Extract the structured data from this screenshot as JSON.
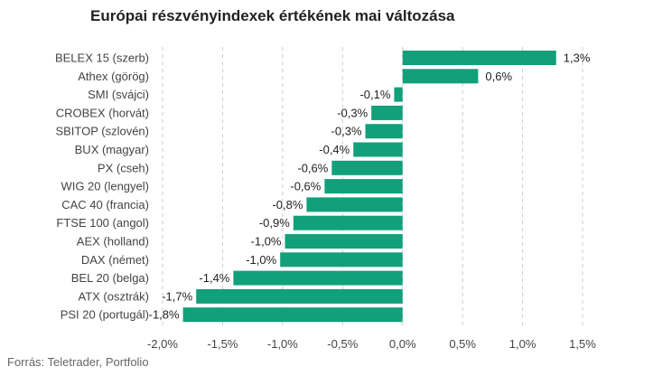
{
  "chart_data": {
    "type": "bar",
    "orientation": "horizontal",
    "title": "Európai részvényindexek értékének mai változása",
    "source": "Forrás: Teletrader, Portfolio",
    "categories": [
      "BELEX 15 (szerb)",
      "Athex (görög)",
      "SMI (svájci)",
      "CROBEX (horvát)",
      "SBITOP (szlovén)",
      "BUX (magyar)",
      "PX (cseh)",
      "WIG 20 (lengyel)",
      "CAC 40 (francia)",
      "FTSE 100 (angol)",
      "AEX (holland)",
      "DAX (német)",
      "BEL 20 (belga)",
      "ATX (osztrák)",
      "PSI 20 (portugál)"
    ],
    "values": [
      1.28,
      0.63,
      -0.07,
      -0.26,
      -0.31,
      -0.41,
      -0.59,
      -0.65,
      -0.8,
      -0.91,
      -0.98,
      -1.02,
      -1.41,
      -1.72,
      -1.83
    ],
    "value_labels": [
      "1,3%",
      "0,6%",
      "-0,1%",
      "-0,3%",
      "-0,3%",
      "-0,4%",
      "-0,6%",
      "-0,6%",
      "-0,8%",
      "-0,9%",
      "-1,0%",
      "-1,0%",
      "-1,4%",
      "-1,7%",
      "-1,8%"
    ],
    "x_ticks": [
      -2.0,
      -1.5,
      -1.0,
      -0.5,
      0.0,
      0.5,
      1.0,
      1.5
    ],
    "x_tick_labels": [
      "-2,0%",
      "-1,5%",
      "-1,0%",
      "-0,5%",
      "0,0%",
      "0,5%",
      "1,0%",
      "1,5%"
    ],
    "xlim": [
      -2.0,
      1.5
    ],
    "xlabel": "",
    "ylabel": "",
    "grid": "vertical-dashed",
    "legend": "none",
    "colors": {
      "bar": "#12a07a",
      "grid": "#cccccc",
      "text": "#444444"
    }
  }
}
